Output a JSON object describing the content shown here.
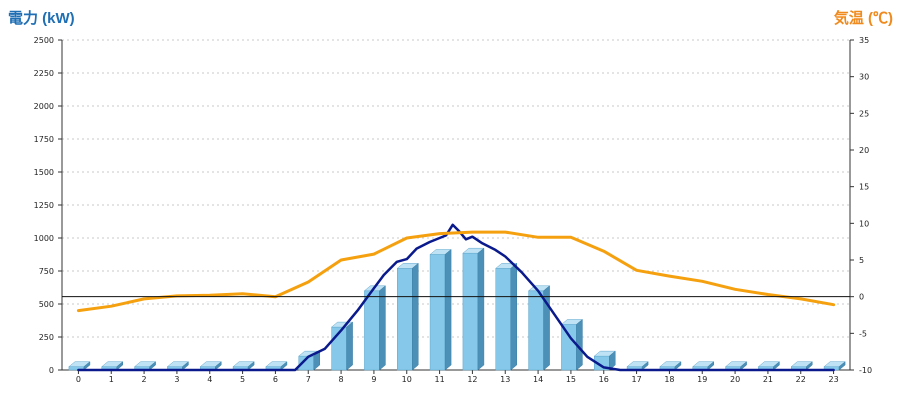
{
  "chart_data": {
    "type": "bar",
    "left_axis_title": "電力 (kW)",
    "right_axis_title": "気温 (℃)",
    "categories": [
      "0",
      "1",
      "2",
      "3",
      "4",
      "5",
      "6",
      "7",
      "8",
      "9",
      "10",
      "11",
      "12",
      "13",
      "14",
      "15",
      "16",
      "17",
      "18",
      "19",
      "20",
      "21",
      "22",
      "23"
    ],
    "left_ylim": [
      0,
      2500
    ],
    "left_ticks": [
      0,
      250,
      500,
      750,
      1000,
      1250,
      1500,
      1750,
      2000,
      2250,
      2500
    ],
    "right_ylim": [
      -10,
      35
    ],
    "right_ticks": [
      -10,
      -5,
      0,
      5,
      10,
      15,
      20,
      25,
      30,
      35
    ],
    "grid": true,
    "reference_line": {
      "axis": "right",
      "value": 0
    },
    "series": [
      {
        "kind": "bar",
        "axis": "left",
        "values": [
          25,
          25,
          25,
          25,
          25,
          25,
          25,
          105,
          325,
          600,
          770,
          875,
          885,
          770,
          600,
          345,
          105,
          25,
          25,
          25,
          25,
          25,
          25,
          25
        ]
      },
      {
        "kind": "line",
        "axis": "left",
        "x": [
          0,
          1,
          2,
          3,
          4,
          5,
          6,
          6.6,
          7,
          7.5,
          8,
          8.5,
          9,
          9.3,
          9.7,
          10,
          10.3,
          10.7,
          11,
          11.2,
          11.4,
          11.6,
          11.8,
          12,
          12.3,
          12.7,
          13,
          13.5,
          14,
          14.5,
          15,
          15.5,
          16,
          16.5,
          17,
          18,
          19,
          20,
          21,
          22,
          23
        ],
        "values": [
          0,
          0,
          0,
          0,
          0,
          0,
          0,
          0,
          100,
          160,
          300,
          450,
          620,
          720,
          820,
          840,
          920,
          970,
          1000,
          1020,
          1100,
          1050,
          990,
          1010,
          960,
          910,
          860,
          740,
          600,
          420,
          240,
          100,
          20,
          0,
          0,
          0,
          0,
          0,
          0,
          0,
          0
        ]
      },
      {
        "kind": "line",
        "axis": "right",
        "values": [
          -1.9,
          -1.3,
          -0.3,
          0.1,
          0.2,
          0.4,
          0,
          2,
          5,
          5.8,
          8,
          8.6,
          8.8,
          8.8,
          8.1,
          8.1,
          6.2,
          3.6,
          2.8,
          2.1,
          1,
          0.3,
          -0.3,
          -1.1
        ],
        "color": "#f5a00e"
      }
    ]
  }
}
